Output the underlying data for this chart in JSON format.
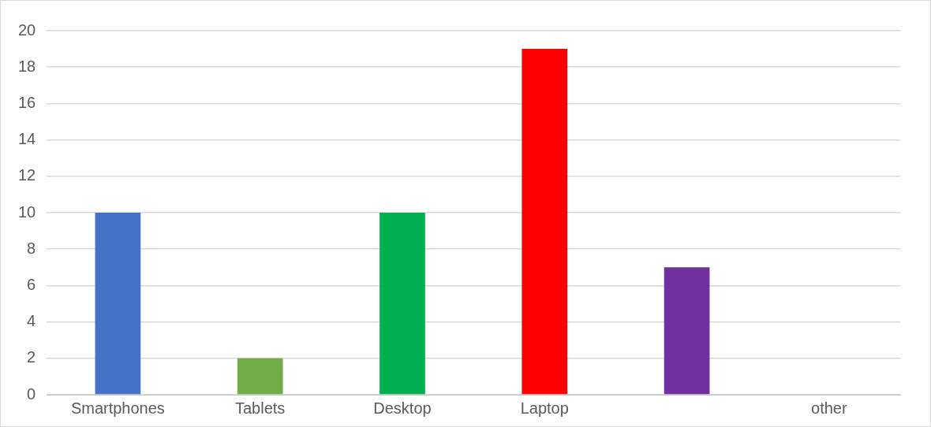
{
  "chart_data": {
    "type": "bar",
    "categories": [
      "Smartphones",
      "Tablets",
      "Desktop",
      "Laptop",
      null,
      "other"
    ],
    "values": [
      10,
      2,
      10,
      19,
      7,
      0
    ],
    "colors": [
      "#4472c4",
      "#70ad47",
      "#00b050",
      "#ff0000",
      "#7030a0",
      "#a5a5a5"
    ],
    "ylim": [
      0,
      20
    ],
    "yticks": [
      0,
      2,
      4,
      6,
      8,
      10,
      12,
      14,
      16,
      18,
      20
    ],
    "grid": "y",
    "legend": false
  }
}
